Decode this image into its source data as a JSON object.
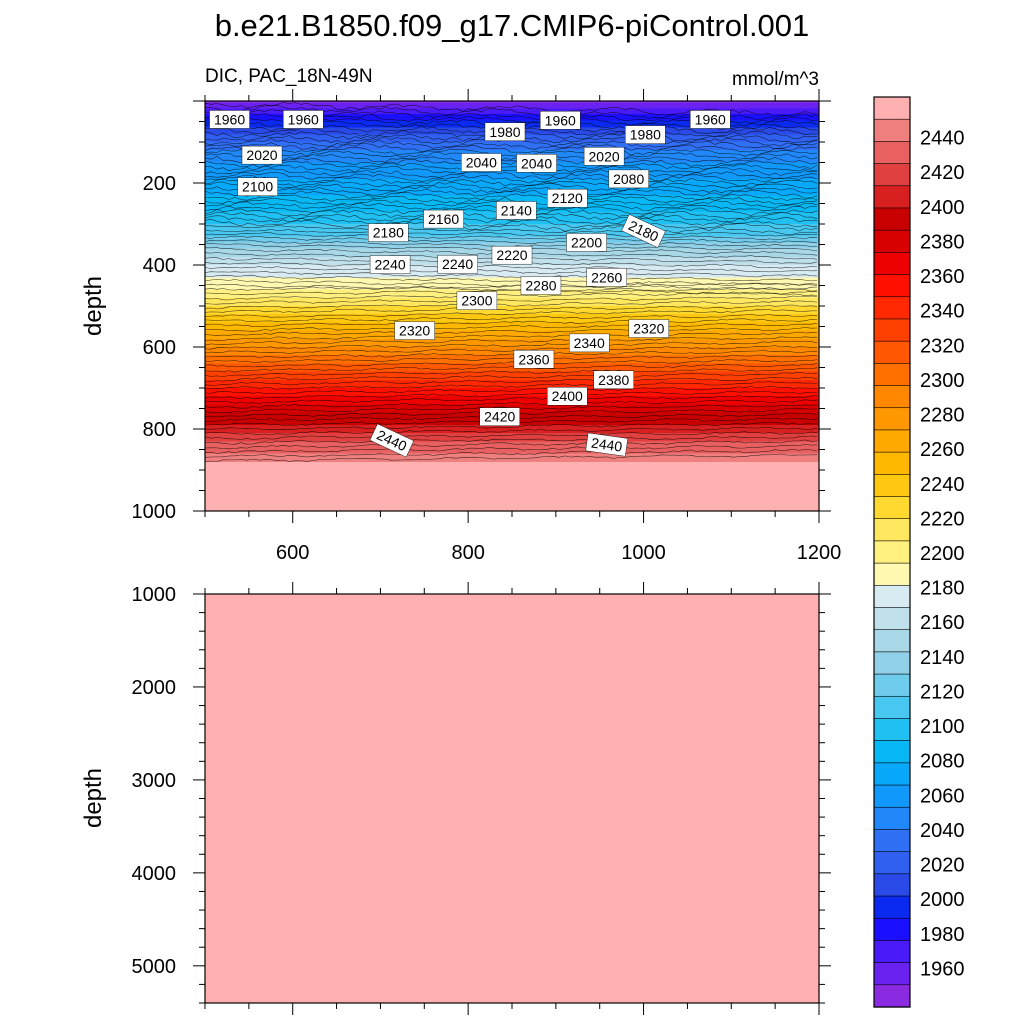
{
  "title": "b.e21.B1850.f09_g17.CMIP6-piControl.001",
  "chart_data": {
    "type": "heatmap",
    "variable_label": "DIC, PAC_18N-49N",
    "units_label": "mmol/m^3",
    "colormap": [
      "#8A2BE2",
      "#6A22F0",
      "#4A1AF8",
      "#1A10FF",
      "#0A2AF0",
      "#2A4AE8",
      "#3060F0",
      "#3070F5",
      "#2088F8",
      "#1098FA",
      "#08A8FA",
      "#08B8F5",
      "#20C0F2",
      "#48C8F0",
      "#70CCEC",
      "#90D0E8",
      "#A8D8E8",
      "#C0E0EC",
      "#D8EAF2",
      "#FFF8B0",
      "#FFF080",
      "#FFE860",
      "#FFD830",
      "#FFC810",
      "#FFB800",
      "#FFA800",
      "#FF9800",
      "#FF8800",
      "#FF7000",
      "#FF5800",
      "#FF4000",
      "#FF2800",
      "#FF1000",
      "#EE0000",
      "#D80000",
      "#C80000",
      "#D82020",
      "#E04040",
      "#E86060",
      "#F08080",
      "#FFB0B0"
    ],
    "panels": [
      {
        "x_ticks": [
          "600",
          "800",
          "1000",
          "1200"
        ],
        "x_range": [
          500,
          1200
        ],
        "y_ticks": [
          "200",
          "400",
          "600",
          "800",
          "1000"
        ],
        "y_range": [
          0,
          1000
        ],
        "ylabel": "depth",
        "contour_labels": [
          {
            "text": "1960",
            "x": 528,
            "y": 45
          },
          {
            "text": "1960",
            "x": 612,
            "y": 45
          },
          {
            "text": "1960",
            "x": 905,
            "y": 47
          },
          {
            "text": "1960",
            "x": 1076,
            "y": 45
          },
          {
            "text": "1980",
            "x": 842,
            "y": 75
          },
          {
            "text": "1980",
            "x": 1002,
            "y": 82
          },
          {
            "text": "2020",
            "x": 565,
            "y": 132
          },
          {
            "text": "2020",
            "x": 955,
            "y": 135
          },
          {
            "text": "2040",
            "x": 815,
            "y": 150
          },
          {
            "text": "2040",
            "x": 878,
            "y": 152
          },
          {
            "text": "2080",
            "x": 983,
            "y": 190
          },
          {
            "text": "2100",
            "x": 560,
            "y": 209
          },
          {
            "text": "2120",
            "x": 913,
            "y": 237
          },
          {
            "text": "2140",
            "x": 855,
            "y": 267
          },
          {
            "text": "2160",
            "x": 772,
            "y": 288
          },
          {
            "text": "2180",
            "x": 709,
            "y": 321
          },
          {
            "text": "2180",
            "x": 1000,
            "y": 317
          },
          {
            "text": "2200",
            "x": 935,
            "y": 345
          },
          {
            "text": "2220",
            "x": 850,
            "y": 376
          },
          {
            "text": "2240",
            "x": 711,
            "y": 399
          },
          {
            "text": "2240",
            "x": 788,
            "y": 398
          },
          {
            "text": "2260",
            "x": 958,
            "y": 430
          },
          {
            "text": "2280",
            "x": 883,
            "y": 450
          },
          {
            "text": "2300",
            "x": 810,
            "y": 487
          },
          {
            "text": "2320",
            "x": 739,
            "y": 560
          },
          {
            "text": "2320",
            "x": 1006,
            "y": 555
          },
          {
            "text": "2340",
            "x": 938,
            "y": 590
          },
          {
            "text": "2360",
            "x": 875,
            "y": 630
          },
          {
            "text": "2380",
            "x": 966,
            "y": 680
          },
          {
            "text": "2400",
            "x": 913,
            "y": 720
          },
          {
            "text": "2420",
            "x": 836,
            "y": 770
          },
          {
            "text": "2440",
            "x": 713,
            "y": 828
          },
          {
            "text": "2440",
            "x": 958,
            "y": 838
          }
        ]
      },
      {
        "x_range": [
          500,
          1200
        ],
        "y_ticks": [
          "1000",
          "2000",
          "3000",
          "4000",
          "5000"
        ],
        "y_range": [
          1000,
          5400
        ],
        "ylabel": "depth",
        "uniform_level": "above 2440"
      }
    ],
    "colorbar": {
      "levels": [
        "1960",
        "1980",
        "2000",
        "2020",
        "2040",
        "2060",
        "2080",
        "2100",
        "2120",
        "2140",
        "2160",
        "2180",
        "2200",
        "2220",
        "2240",
        "2260",
        "2280",
        "2300",
        "2320",
        "2340",
        "2360",
        "2380",
        "2400",
        "2420",
        "2440"
      ]
    }
  }
}
